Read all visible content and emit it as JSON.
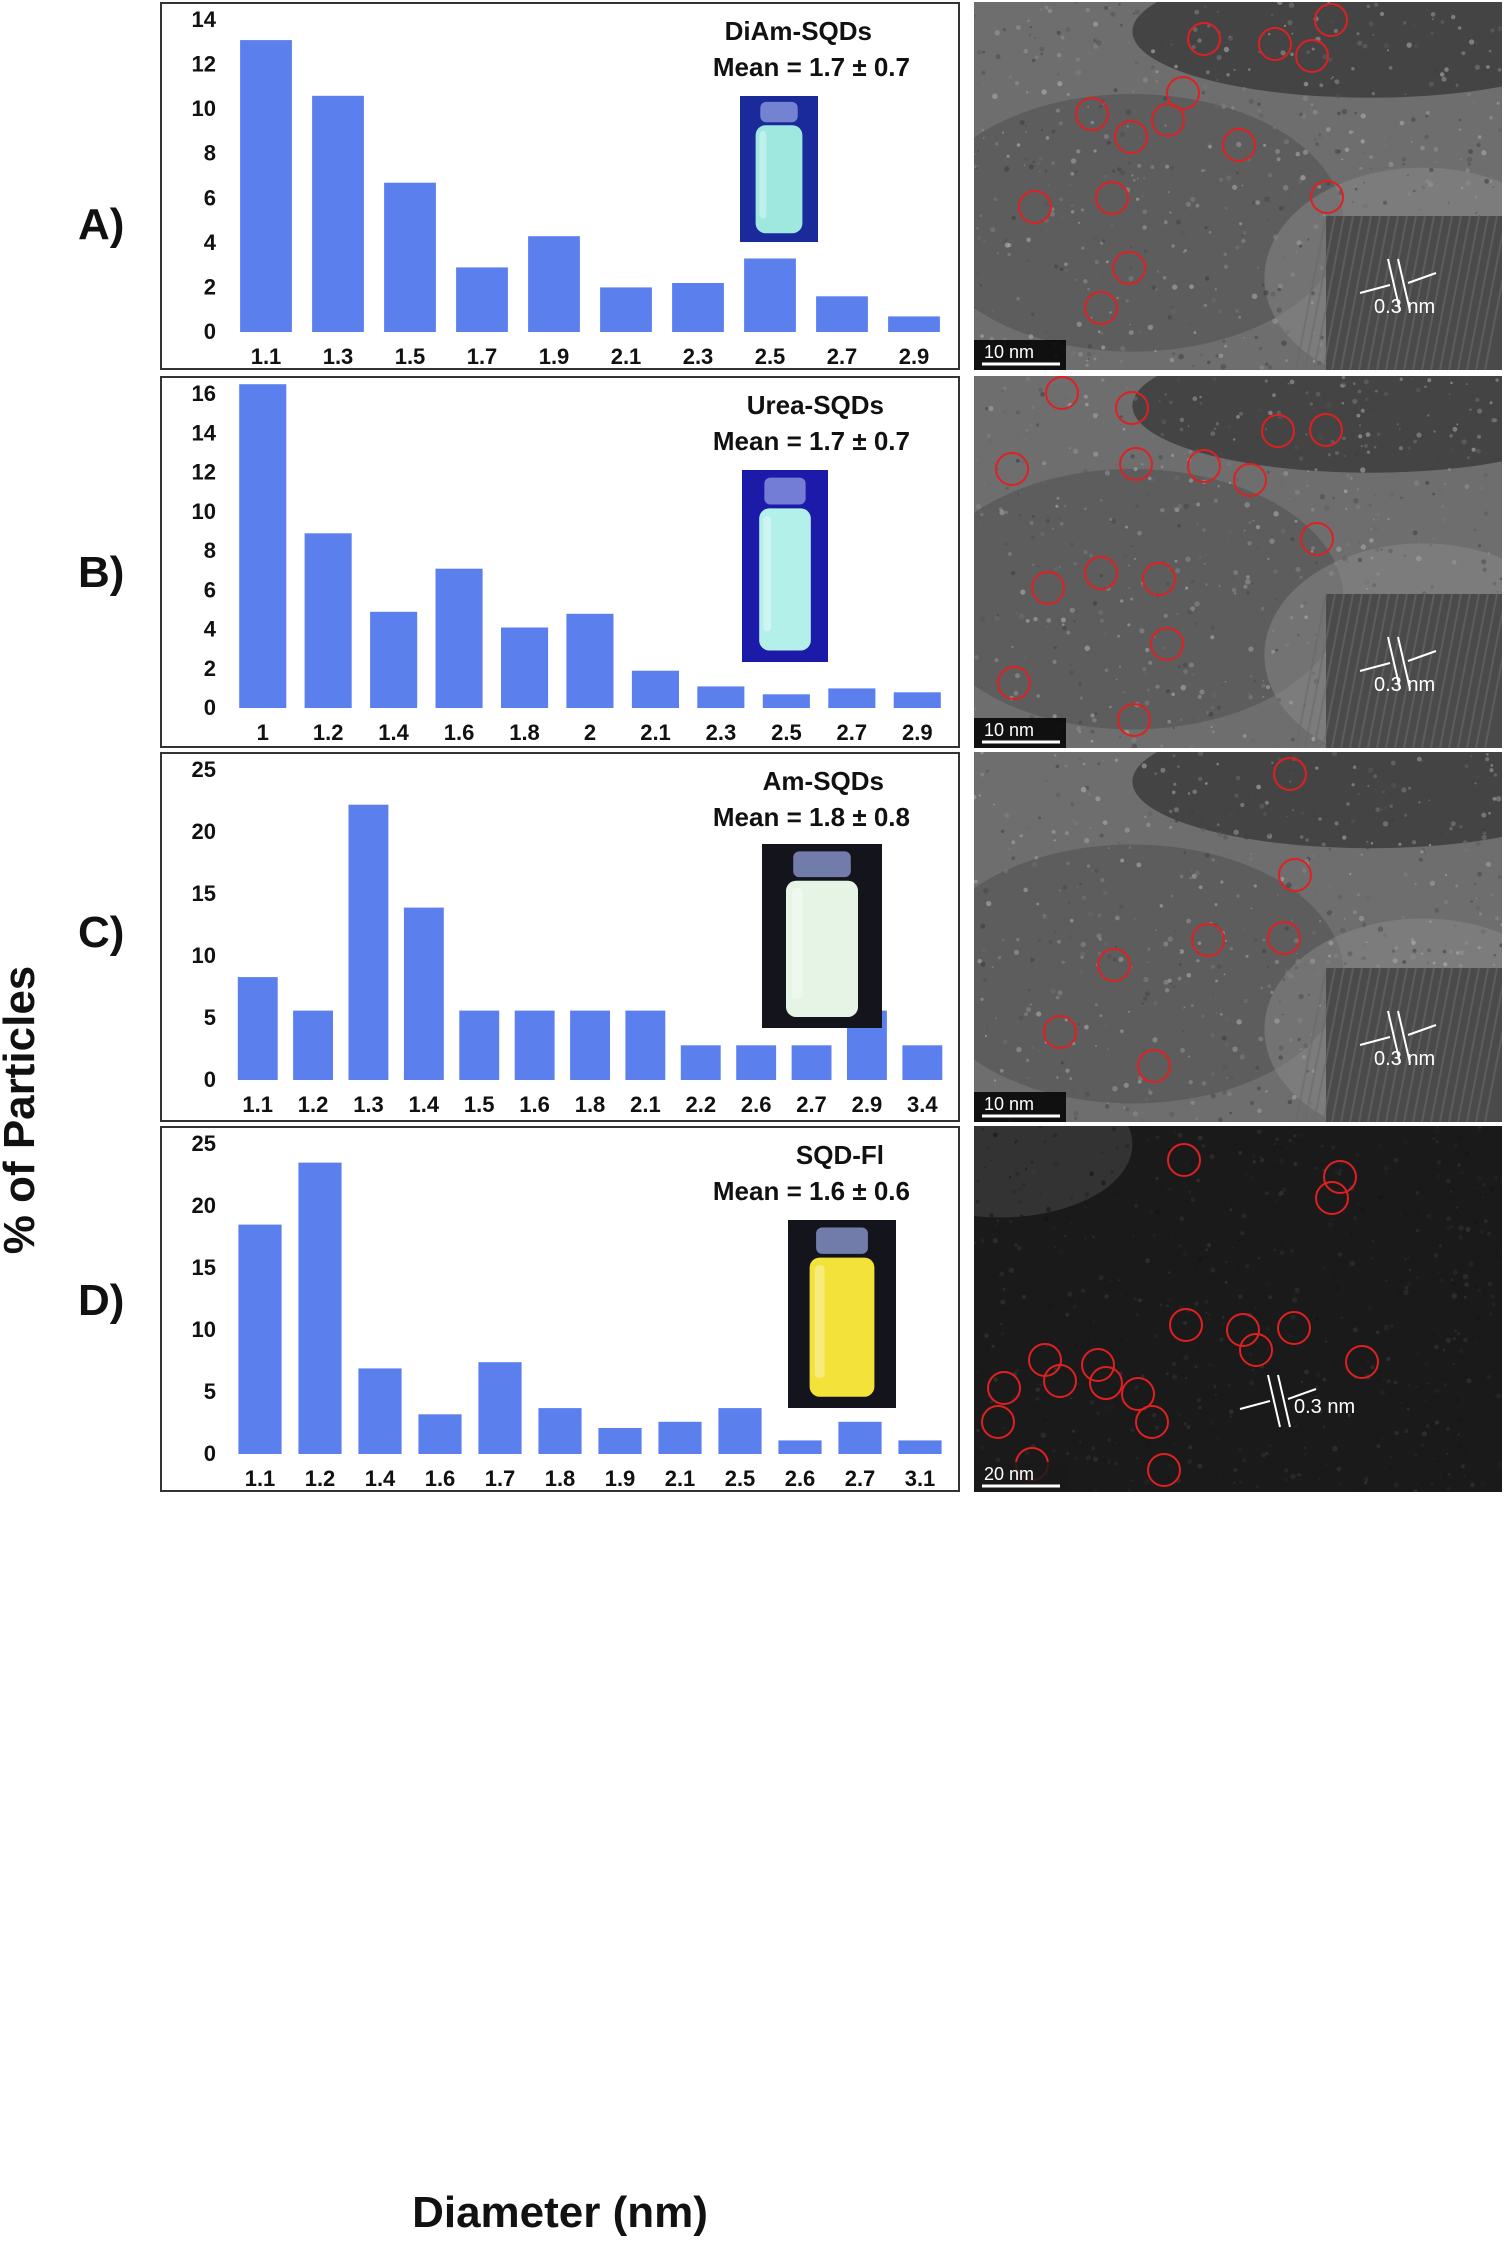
{
  "axis_labels": {
    "y": "% of Particles",
    "x": "Diameter (nm)"
  },
  "panels": [
    {
      "letter": "A)",
      "title": "DiAm-SQDs",
      "mean": "Mean = 1.7 ± 0.7",
      "scale_label": "10 nm",
      "lattice_label": "0.3 nm",
      "vial_color": "#9fe8e0"
    },
    {
      "letter": "B)",
      "title": "Urea-SQDs",
      "mean": "Mean = 1.7 ± 0.7",
      "scale_label": "10 nm",
      "lattice_label": "0.3 nm",
      "vial_color": "#b4f0ea"
    },
    {
      "letter": "C)",
      "title": "Am-SQDs",
      "mean": "Mean = 1.8 ± 0.8",
      "scale_label": "10 nm",
      "lattice_label": "0.3 nm",
      "vial_color": "#e6f4e6"
    },
    {
      "letter": "D)",
      "title": "SQD-Fl",
      "mean": "Mean = 1.6 ± 0.6",
      "scale_label": "20 nm",
      "lattice_label": "0.3 nm",
      "vial_color": "#f2e23a"
    }
  ],
  "chart_data": [
    {
      "type": "bar",
      "title": "DiAm-SQDs",
      "categories": [
        "1.1",
        "1.3",
        "1.5",
        "1.7",
        "1.9",
        "2.1",
        "2.3",
        "2.5",
        "2.7",
        "2.9"
      ],
      "values": [
        13.1,
        10.6,
        6.7,
        2.9,
        4.3,
        2.0,
        2.2,
        3.3,
        1.6,
        0.7
      ],
      "ylim": [
        0,
        14
      ],
      "yticks": [
        0,
        2,
        4,
        6,
        8,
        10,
        12,
        14
      ],
      "color": "#5b80ee"
    },
    {
      "type": "bar",
      "title": "Urea-SQDs",
      "categories": [
        "1",
        "1.2",
        "1.4",
        "1.6",
        "1.8",
        "2",
        "2.1",
        "2.3",
        "2.5",
        "2.7",
        "2.9"
      ],
      "values": [
        16.5,
        8.9,
        4.9,
        7.1,
        4.1,
        4.8,
        1.9,
        1.1,
        0.7,
        1.0,
        0.8
      ],
      "ylim": [
        0,
        16
      ],
      "yticks": [
        0,
        2,
        4,
        6,
        8,
        10,
        12,
        14,
        16
      ],
      "color": "#5b80ee"
    },
    {
      "type": "bar",
      "title": "Am-SQDs",
      "categories": [
        "1.1",
        "1.2",
        "1.3",
        "1.4",
        "1.5",
        "1.6",
        "1.8",
        "2.1",
        "2.2",
        "2.6",
        "2.7",
        "2.9",
        "3.4"
      ],
      "values": [
        8.3,
        5.6,
        22.2,
        13.9,
        5.6,
        5.6,
        5.6,
        5.6,
        2.8,
        2.8,
        2.8,
        5.6,
        2.8
      ],
      "ylim": [
        0,
        25
      ],
      "yticks": [
        0,
        5,
        10,
        15,
        20,
        25
      ],
      "color": "#5b80ee"
    },
    {
      "type": "bar",
      "title": "SQD-Fl",
      "categories": [
        "1.1",
        "1.2",
        "1.4",
        "1.6",
        "1.7",
        "1.8",
        "1.9",
        "2.1",
        "2.5",
        "2.6",
        "2.7",
        "3.1"
      ],
      "values": [
        18.5,
        23.5,
        6.9,
        3.2,
        7.4,
        3.7,
        2.1,
        2.6,
        3.7,
        1.1,
        2.6,
        1.1
      ],
      "ylim": [
        0,
        25
      ],
      "yticks": [
        0,
        5,
        10,
        15,
        20,
        25
      ],
      "color": "#5b80ee"
    }
  ]
}
